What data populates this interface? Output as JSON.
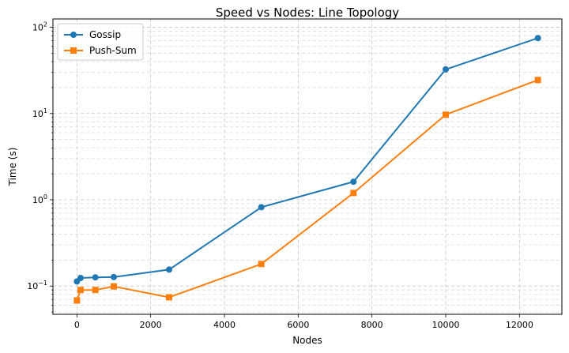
{
  "chart_data": {
    "type": "line",
    "title": "Speed vs Nodes: Line Topology",
    "xlabel": "Nodes",
    "ylabel": "Time (s)",
    "x_scale": "linear",
    "y_scale": "log",
    "xlim": [
      -650,
      13150
    ],
    "ylim": [
      0.047,
      125
    ],
    "x_ticks": [
      0,
      2000,
      4000,
      6000,
      8000,
      10000,
      12000
    ],
    "x_tick_labels": [
      "0",
      "2000",
      "4000",
      "6000",
      "8000",
      "10000",
      "12000"
    ],
    "y_ticks": [
      {
        "value": 0.1,
        "base": "10",
        "exp": "−1"
      },
      {
        "value": 1,
        "base": "10",
        "exp": "0"
      },
      {
        "value": 10,
        "base": "10",
        "exp": "1"
      },
      {
        "value": 100,
        "base": "10",
        "exp": "2"
      }
    ],
    "grid": true,
    "legend_position": "top-left",
    "series": [
      {
        "name": "Gossip",
        "color": "#1f77b4",
        "marker": "circle",
        "x": [
          0,
          100,
          500,
          1000,
          2500,
          5000,
          7500,
          10000,
          12500
        ],
        "y": [
          0.113,
          0.124,
          0.126,
          0.127,
          0.155,
          0.82,
          1.62,
          32.5,
          75.0
        ]
      },
      {
        "name": "Push-Sum",
        "color": "#ff7f0e",
        "marker": "square",
        "x": [
          0,
          100,
          500,
          1000,
          2500,
          5000,
          7500,
          10000,
          12500
        ],
        "y": [
          0.068,
          0.09,
          0.09,
          0.099,
          0.074,
          0.18,
          1.2,
          9.7,
          24.5
        ]
      }
    ]
  }
}
